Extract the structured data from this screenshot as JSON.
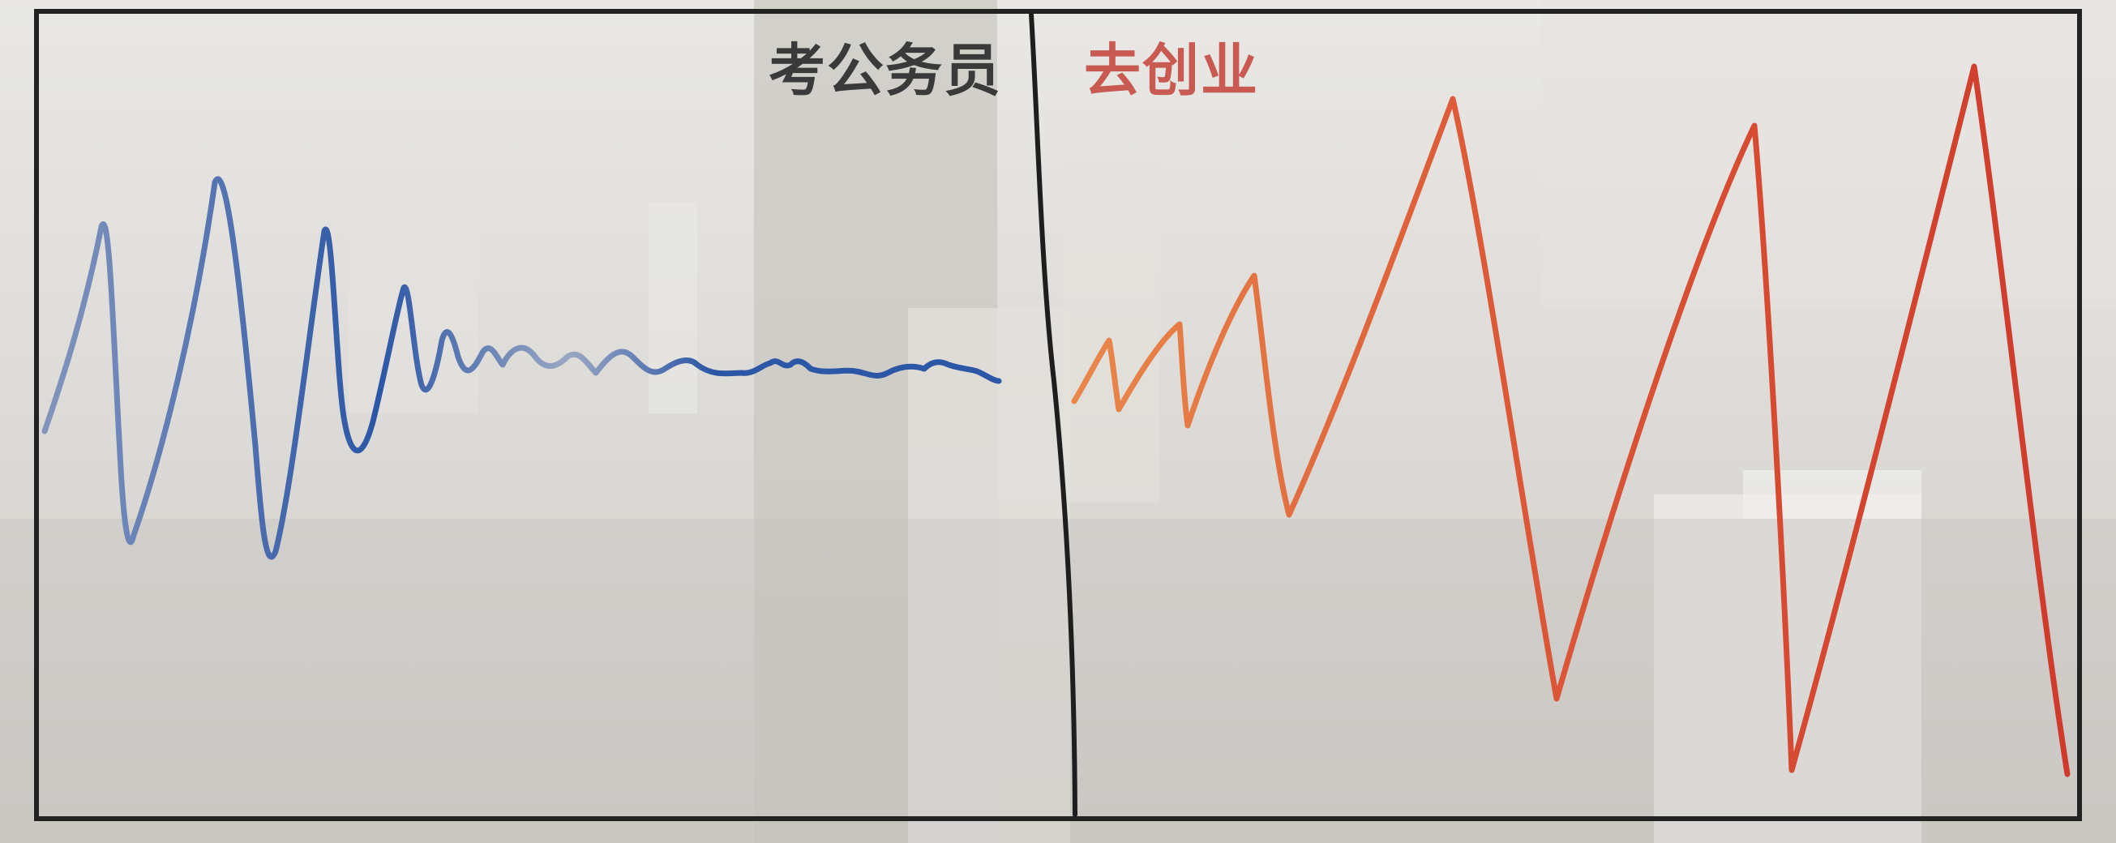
{
  "panels": [
    {
      "label": "考公务员",
      "label_color": "#3a3a3a",
      "line_color": "#2c56a6",
      "line_color_faded": "#7d8fb6"
    },
    {
      "label": "去创业",
      "label_color": "#c85a52",
      "line_color": "#d2402f",
      "line_color_faded": "#e6874a"
    }
  ],
  "colors": {
    "background_haze": "#e4e2de",
    "frame": "#222222"
  }
}
